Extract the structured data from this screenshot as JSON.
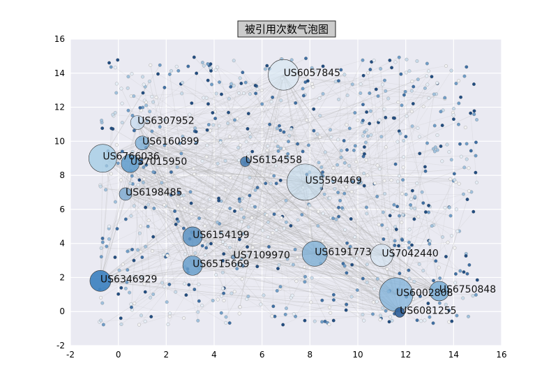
{
  "chart_data": {
    "type": "scatter",
    "title": "被引用次数气泡图",
    "xlabel": "",
    "ylabel": "",
    "xlim": [
      -2,
      16
    ],
    "ylim": [
      -2,
      16
    ],
    "x_ticks": [
      "-2",
      "0",
      "2",
      "4",
      "6",
      "8",
      "10",
      "12",
      "14",
      "16"
    ],
    "y_ticks": [
      "-2",
      "0",
      "2",
      "4",
      "6",
      "8",
      "10",
      "12",
      "14",
      "16"
    ],
    "grid": true,
    "background_color": "#EAEAF2",
    "labeled_bubbles": [
      {
        "label": "US6057845",
        "x": 6.9,
        "y": 13.9,
        "size": 22,
        "color": "#d4e6f1",
        "alpha": 0.6
      },
      {
        "label": "US6307952",
        "x": 0.8,
        "y": 11.1,
        "size": 10,
        "color": "#c6dbef",
        "alpha": 0.75
      },
      {
        "label": "US6160899",
        "x": 1.0,
        "y": 9.9,
        "size": 10,
        "color": "#7fb2d8",
        "alpha": 0.8
      },
      {
        "label": "US6766036",
        "x": -0.65,
        "y": 9.0,
        "size": 20,
        "color": "#a9cfe6",
        "alpha": 0.85
      },
      {
        "label": "US7015950",
        "x": 0.5,
        "y": 8.7,
        "size": 13,
        "color": "#5f9ccc",
        "alpha": 0.85
      },
      {
        "label": "US6154558",
        "x": 5.3,
        "y": 8.8,
        "size": 7,
        "color": "#4a7eb0",
        "alpha": 0.9
      },
      {
        "label": "US5594469",
        "x": 7.8,
        "y": 7.6,
        "size": 26,
        "color": "#bcd7ea",
        "alpha": 0.55
      },
      {
        "label": "US6198485",
        "x": 0.3,
        "y": 6.9,
        "size": 9,
        "color": "#7ba7cf",
        "alpha": 0.8
      },
      {
        "label": "US6154199",
        "x": 3.1,
        "y": 4.4,
        "size": 14,
        "color": "#5c93c3",
        "alpha": 0.85
      },
      {
        "label": "US6191773",
        "x": 8.2,
        "y": 3.4,
        "size": 18,
        "color": "#7fb0d6",
        "alpha": 0.8
      },
      {
        "label": "US7042440",
        "x": 11.0,
        "y": 3.3,
        "size": 16,
        "color": "#d0e3f2",
        "alpha": 0.6
      },
      {
        "label": "US7109970",
        "x": 4.8,
        "y": 3.2,
        "size": 3,
        "color": "#6b9bc7",
        "alpha": 0.8
      },
      {
        "label": "US6515669",
        "x": 3.1,
        "y": 2.7,
        "size": 14,
        "color": "#6aa0cd",
        "alpha": 0.85
      },
      {
        "label": "US6346929",
        "x": -0.75,
        "y": 1.8,
        "size": 15,
        "color": "#3a7fbf",
        "alpha": 0.9
      },
      {
        "label": "US6002808",
        "x": 11.6,
        "y": 1.0,
        "size": 24,
        "color": "#7fb2d9",
        "alpha": 0.75
      },
      {
        "label": "US6750848",
        "x": 13.4,
        "y": 1.2,
        "size": 14,
        "color": "#7aaed6",
        "alpha": 0.85
      },
      {
        "label": "US6081255",
        "x": 11.75,
        "y": -0.05,
        "size": 7,
        "color": "#2e5f99",
        "alpha": 0.9
      }
    ],
    "background_points": {
      "count": 850,
      "x_range": [
        -0.8,
        15
      ],
      "y_range": [
        -0.8,
        15
      ],
      "colors": [
        "#e6eef6",
        "#c9dbea",
        "#9fc0dc",
        "#6f9cc6",
        "#3f6fa3",
        "#224d80",
        "#f2f2f2"
      ]
    },
    "edges": {
      "count": 420,
      "color": "#b3b3b3"
    }
  }
}
